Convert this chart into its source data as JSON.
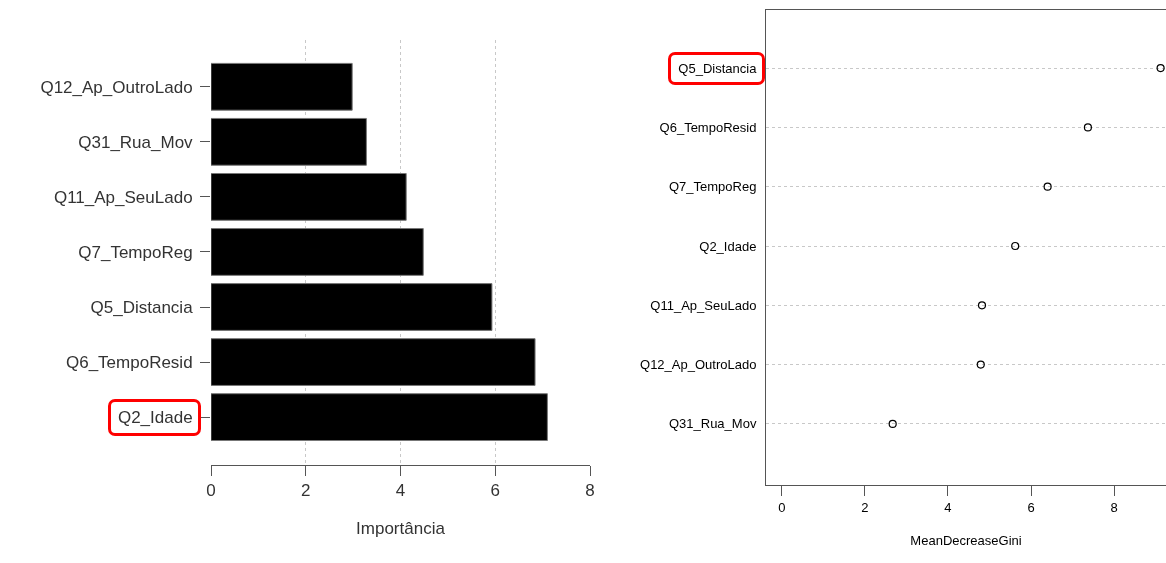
{
  "chart_data": [
    {
      "type": "bar",
      "orientation": "horizontal",
      "categories": [
        "Q12_Ap_OutroLado",
        "Q31_Rua_Mov",
        "Q11_Ap_SeuLado",
        "Q7_TempoReg",
        "Q5_Distancia",
        "Q6_TempoResid",
        "Q2_Idade"
      ],
      "values": [
        2.98,
        3.28,
        4.12,
        4.48,
        5.93,
        6.84,
        7.1
      ],
      "color": "#000000",
      "xlim": [
        0,
        8
      ],
      "xticks": [
        0,
        2,
        4,
        6,
        8
      ],
      "xlabel": "Importância",
      "grid": "x"
    },
    {
      "type": "scatter",
      "orientation": "horizontal",
      "marker": "circle",
      "categories": [
        "Q5_Distancia",
        "Q6_TempoResid",
        "Q7_TempoReg",
        "Q2_Idade",
        "Q11_Ap_SeuLado",
        "Q12_Ap_OutroLado",
        "Q31_Rua_Mov"
      ],
      "values": [
        9.12,
        7.37,
        6.4,
        5.62,
        4.82,
        4.79,
        2.67
      ],
      "color": "#000000",
      "xlim": [
        -0.38,
        9.25
      ],
      "xticks": [
        0,
        2,
        4,
        6,
        8
      ],
      "xlabel": "MeanDecreaseGini",
      "grid": "y"
    }
  ]
}
